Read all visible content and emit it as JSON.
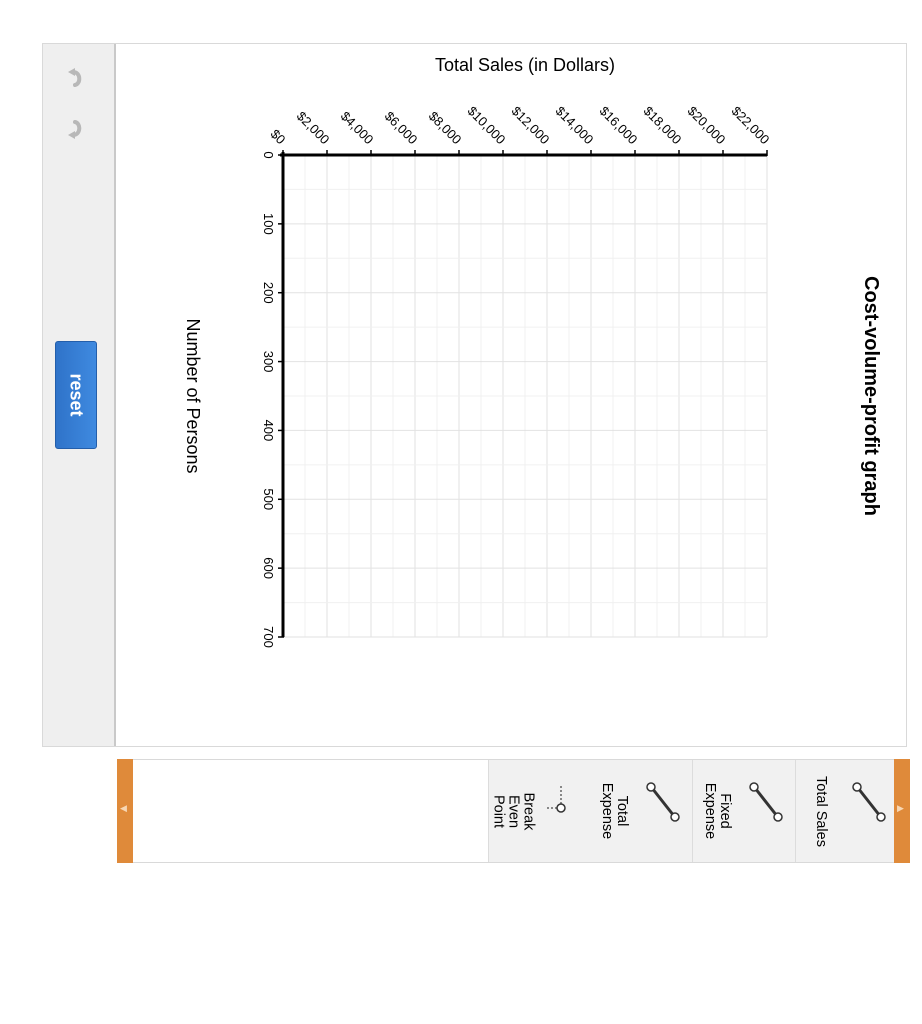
{
  "toolbar": {
    "undo_icon": "undo-icon",
    "redo_icon": "redo-icon",
    "reset_label": "reset",
    "reset_color": "#3a83d8"
  },
  "chart_data": {
    "type": "line",
    "title": "Cost-volume-profit graph",
    "xlabel": "Total Sales (in Dollars)",
    "ylabel": "Number of Persons",
    "xlim": [
      0,
      22000
    ],
    "ylim": [
      0,
      700
    ],
    "x_ticks": [
      0,
      2000,
      4000,
      6000,
      8000,
      10000,
      12000,
      14000,
      16000,
      18000,
      20000,
      22000
    ],
    "x_tick_labels": [
      "$0",
      "$2,000",
      "$4,000",
      "$6,000",
      "$8,000",
      "$10,000",
      "$12,000",
      "$14,000",
      "$16,000",
      "$18,000",
      "$20,000",
      "$22,000"
    ],
    "y_ticks": [
      0,
      100,
      200,
      300,
      400,
      500,
      600,
      700
    ],
    "y_tick_labels": [
      "0",
      "100",
      "200",
      "300",
      "400",
      "500",
      "600",
      "700"
    ],
    "grid": true,
    "series": []
  },
  "palette": {
    "tools": [
      {
        "id": "total-sales",
        "label": "Total Sales",
        "icon": "line-tool-icon"
      },
      {
        "id": "fixed-expense",
        "label": "Fixed Expense",
        "icon": "line-tool-icon"
      },
      {
        "id": "total-expense",
        "label": "Total Expense",
        "icon": "line-tool-icon"
      },
      {
        "id": "break-even-point",
        "label": "Break Even Point",
        "icon": "point-tool-icon"
      }
    ],
    "handle_color": "#df8a3a"
  }
}
